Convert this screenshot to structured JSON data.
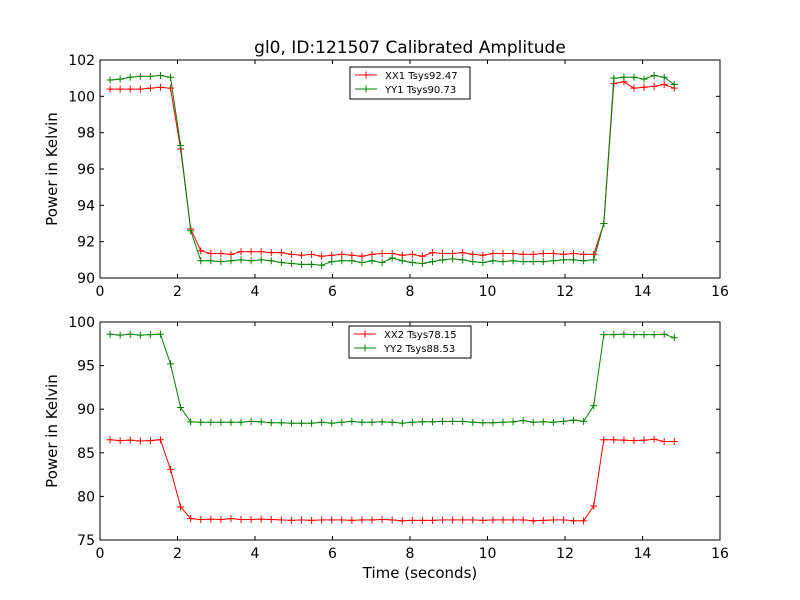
{
  "figure": {
    "title": "gl0, ID:121507 Calibrated Amplitude"
  },
  "chart_data": [
    {
      "type": "line",
      "title": "gl0, ID:121507 Calibrated Amplitude",
      "xlabel": "",
      "ylabel": "Power in Kelvin",
      "xlim": [
        0,
        16
      ],
      "ylim": [
        90,
        102
      ],
      "xticks": [
        0,
        2,
        4,
        6,
        8,
        10,
        12,
        14,
        16
      ],
      "yticks": [
        90,
        92,
        94,
        96,
        98,
        100,
        102
      ],
      "grid": false,
      "legend_position": "top-center",
      "x": [
        0.26,
        0.52,
        0.78,
        1.04,
        1.3,
        1.56,
        1.82,
        2.08,
        2.34,
        2.6,
        2.86,
        3.12,
        3.38,
        3.64,
        3.9,
        4.16,
        4.42,
        4.68,
        4.94,
        5.2,
        5.46,
        5.72,
        5.98,
        6.24,
        6.5,
        6.76,
        7.02,
        7.28,
        7.54,
        7.8,
        8.06,
        8.32,
        8.58,
        8.84,
        9.1,
        9.36,
        9.62,
        9.88,
        10.14,
        10.4,
        10.66,
        10.92,
        11.18,
        11.44,
        11.7,
        11.96,
        12.22,
        12.48,
        12.74,
        13.0,
        13.26,
        13.52,
        13.78,
        14.04,
        14.3,
        14.56,
        14.82
      ],
      "series": [
        {
          "name": "XX1 Tsys92.47",
          "color": "#ff0000",
          "values": [
            100.4,
            100.4,
            100.4,
            100.4,
            100.45,
            100.5,
            100.45,
            97.1,
            92.7,
            91.5,
            91.35,
            91.35,
            91.3,
            91.45,
            91.45,
            91.45,
            91.4,
            91.4,
            91.3,
            91.25,
            91.3,
            91.2,
            91.25,
            91.3,
            91.25,
            91.2,
            91.3,
            91.35,
            91.35,
            91.25,
            91.3,
            91.2,
            91.4,
            91.35,
            91.35,
            91.4,
            91.3,
            91.25,
            91.35,
            91.35,
            91.35,
            91.3,
            91.3,
            91.35,
            91.35,
            91.3,
            91.35,
            91.3,
            91.3,
            93.0,
            100.7,
            100.8,
            100.45,
            100.5,
            100.55,
            100.65,
            100.45
          ]
        },
        {
          "name": "YY1 Tsys90.73",
          "color": "#008000",
          "values": [
            100.9,
            100.95,
            101.05,
            101.1,
            101.1,
            101.15,
            101.05,
            97.3,
            92.6,
            90.95,
            90.95,
            90.9,
            90.95,
            91.0,
            90.95,
            91.0,
            90.95,
            90.85,
            90.8,
            90.75,
            90.75,
            90.7,
            90.9,
            90.95,
            90.95,
            90.85,
            90.95,
            90.85,
            91.1,
            90.95,
            90.85,
            90.8,
            90.9,
            91.0,
            91.05,
            91.0,
            90.9,
            90.85,
            90.95,
            90.9,
            90.95,
            90.9,
            90.9,
            90.9,
            90.95,
            91.0,
            91.0,
            90.95,
            91.0,
            93.0,
            101.0,
            101.05,
            101.05,
            100.95,
            101.15,
            101.05,
            100.65
          ]
        }
      ]
    },
    {
      "type": "line",
      "title": "",
      "xlabel": "Time (seconds)",
      "ylabel": "Power in Kelvin",
      "xlim": [
        0,
        16
      ],
      "ylim": [
        75,
        100
      ],
      "xticks": [
        0,
        2,
        4,
        6,
        8,
        10,
        12,
        14,
        16
      ],
      "yticks": [
        75,
        80,
        85,
        90,
        95,
        100
      ],
      "grid": false,
      "legend_position": "top-center",
      "x": [
        0.26,
        0.52,
        0.78,
        1.04,
        1.3,
        1.56,
        1.82,
        2.08,
        2.34,
        2.6,
        2.86,
        3.12,
        3.38,
        3.64,
        3.9,
        4.16,
        4.42,
        4.68,
        4.94,
        5.2,
        5.46,
        5.72,
        5.98,
        6.24,
        6.5,
        6.76,
        7.02,
        7.28,
        7.54,
        7.8,
        8.06,
        8.32,
        8.58,
        8.84,
        9.1,
        9.36,
        9.62,
        9.88,
        10.14,
        10.4,
        10.66,
        10.92,
        11.18,
        11.44,
        11.7,
        11.96,
        12.22,
        12.48,
        12.74,
        13.0,
        13.26,
        13.52,
        13.78,
        14.04,
        14.3,
        14.56,
        14.82
      ],
      "series": [
        {
          "name": "XX2 Tsys78.15",
          "color": "#ff0000",
          "values": [
            86.5,
            86.4,
            86.45,
            86.35,
            86.4,
            86.5,
            83.1,
            78.8,
            77.45,
            77.35,
            77.4,
            77.35,
            77.45,
            77.35,
            77.35,
            77.4,
            77.35,
            77.3,
            77.25,
            77.3,
            77.25,
            77.3,
            77.3,
            77.3,
            77.25,
            77.3,
            77.3,
            77.35,
            77.3,
            77.2,
            77.25,
            77.25,
            77.25,
            77.3,
            77.3,
            77.3,
            77.3,
            77.25,
            77.3,
            77.3,
            77.3,
            77.3,
            77.2,
            77.25,
            77.3,
            77.3,
            77.2,
            77.2,
            78.9,
            86.5,
            86.5,
            86.45,
            86.4,
            86.45,
            86.55,
            86.3,
            86.3
          ]
        },
        {
          "name": "YY2 Tsys88.53",
          "color": "#008000",
          "values": [
            98.6,
            98.5,
            98.6,
            98.5,
            98.55,
            98.6,
            95.2,
            90.2,
            88.55,
            88.5,
            88.5,
            88.5,
            88.5,
            88.5,
            88.6,
            88.55,
            88.45,
            88.45,
            88.4,
            88.4,
            88.4,
            88.5,
            88.4,
            88.5,
            88.6,
            88.5,
            88.5,
            88.55,
            88.5,
            88.4,
            88.5,
            88.55,
            88.55,
            88.6,
            88.6,
            88.6,
            88.5,
            88.45,
            88.45,
            88.5,
            88.55,
            88.7,
            88.5,
            88.55,
            88.5,
            88.6,
            88.75,
            88.6,
            90.4,
            98.55,
            98.55,
            98.6,
            98.55,
            98.55,
            98.55,
            98.6,
            98.2
          ]
        }
      ]
    }
  ]
}
